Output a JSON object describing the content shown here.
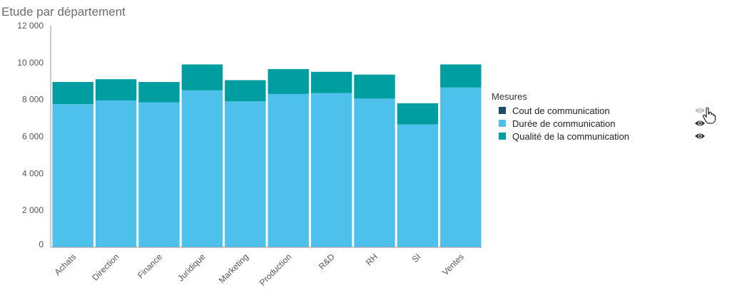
{
  "chart_data": {
    "type": "bar",
    "stacked": true,
    "title": "Etude par département",
    "categories": [
      "Achats",
      "Direction",
      "Finance",
      "Juridique",
      "Marketing",
      "Production",
      "R&D",
      "RH",
      "SI",
      "Ventes"
    ],
    "series": [
      {
        "name": "Cout de communication",
        "color": "#1e4d6b",
        "values": [
          0,
          0,
          0,
          0,
          0,
          0,
          0,
          0,
          0,
          0
        ],
        "hidden": true
      },
      {
        "name": "Durée de communication",
        "color": "#4dc0ec",
        "values": [
          7750,
          7950,
          7850,
          8500,
          7900,
          8300,
          8350,
          8050,
          6650,
          8650
        ]
      },
      {
        "name": "Qualité de la communication",
        "color": "#009ea0",
        "values": [
          1200,
          1150,
          1100,
          1400,
          1150,
          1350,
          1150,
          1300,
          1150,
          1250
        ]
      }
    ],
    "yticks": [
      "0",
      "2 000",
      "4 000",
      "6 000",
      "8 000",
      "10 000",
      "12 000"
    ],
    "ylim": [
      0,
      12000
    ],
    "legend_position": "right",
    "grid": false
  },
  "legend": {
    "title": "Mesures",
    "eye_icon": "eye-icon",
    "cursor_icon": "hand-pointer-icon"
  }
}
